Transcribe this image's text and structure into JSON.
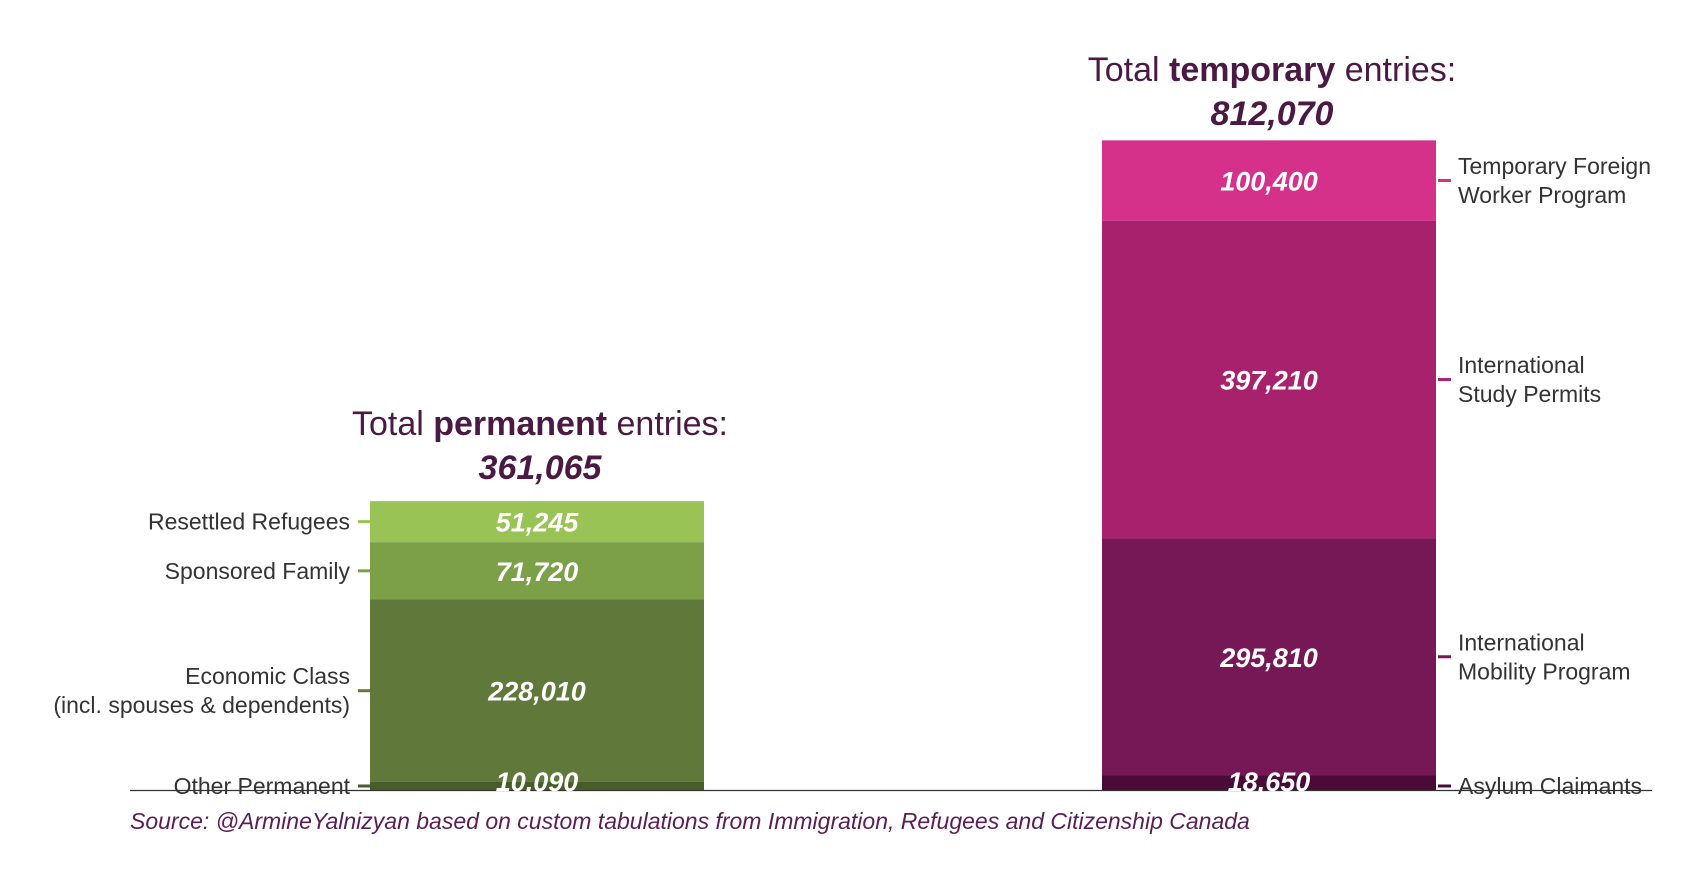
{
  "chart_data": {
    "type": "bar",
    "stacked": true,
    "groups": [
      {
        "title_pre": "Total ",
        "title_strong": "permanent",
        "title_post": " entries:",
        "total": "361,065",
        "segments": [
          {
            "label_lines": [
              "Resettled Refugees"
            ],
            "value": 51245,
            "value_label": "51,245",
            "color": "#9ac356"
          },
          {
            "label_lines": [
              "Sponsored Family"
            ],
            "value": 71720,
            "value_label": "71,720",
            "color": "#7ba047"
          },
          {
            "label_lines": [
              "Economic Class",
              "(incl. spouses & dependents)"
            ],
            "value": 228010,
            "value_label": "228,010",
            "color": "#60793a"
          },
          {
            "label_lines": [
              "Other Permanent"
            ],
            "value": 10090,
            "value_label": "10,090",
            "color": "#475c28"
          }
        ]
      },
      {
        "title_pre": "Total ",
        "title_strong": "temporary",
        "title_post": " entries:",
        "total": "812,070",
        "segments": [
          {
            "label_lines": [
              "Temporary Foreign",
              "Worker Program"
            ],
            "value": 100400,
            "value_label": "100,400",
            "color": "#d6318a"
          },
          {
            "label_lines": [
              "International",
              "Study Permits"
            ],
            "value": 397210,
            "value_label": "397,210",
            "color": "#a8216d"
          },
          {
            "label_lines": [
              "International",
              "Mobility Program"
            ],
            "value": 295810,
            "value_label": "295,810",
            "color": "#761855"
          },
          {
            "label_lines": [
              "Asylum Claimants"
            ],
            "value": 18650,
            "value_label": "18,650",
            "color": "#4a0b38"
          }
        ]
      }
    ],
    "source": "Source: @ArmineYalnizyan based on custom tabulations from Immigration, Refugees and Citizenship Canada"
  }
}
